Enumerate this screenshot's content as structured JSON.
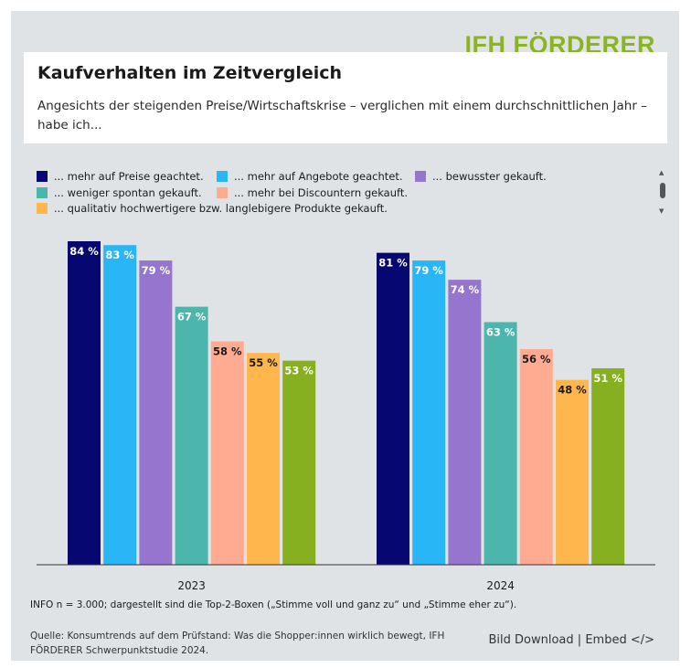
{
  "brand": {
    "name": "IFH FÖRDERER",
    "color": "#8ab423"
  },
  "header": {
    "title": "Kaufverhalten im Zeitvergleich",
    "subtitle": "Angesichts der steigenden Preise/Wirtschaftskrise – verglichen mit einem durchschnittlichen Jahr – habe ich..."
  },
  "legend": {
    "items": [
      {
        "label": "... mehr auf Preise geachtet.",
        "color": "#060770"
      },
      {
        "label": "... mehr auf Angebote geachtet.",
        "color": "#29b6f6"
      },
      {
        "label": "... bewusster gekauft.",
        "color": "#9575cd"
      },
      {
        "label": "... weniger spontan gekauft.",
        "color": "#4db6ac"
      },
      {
        "label": "... mehr bei Discountern gekauft.",
        "color": "#ffab91"
      },
      {
        "label": "... qualitativ hochwertigere bzw. langlebigere Produkte gekauft.",
        "color": "#ffb74d"
      }
    ],
    "scroll": {
      "up_icon": "arrow-up-icon",
      "down_icon": "arrow-down-icon"
    }
  },
  "chart_data": {
    "type": "bar",
    "categories": [
      "2023",
      "2024"
    ],
    "series": [
      {
        "name": "... mehr auf Preise geachtet.",
        "color": "#060770",
        "values": [
          84,
          81
        ]
      },
      {
        "name": "... mehr auf Angebote geachtet.",
        "color": "#29b6f6",
        "values": [
          83,
          79
        ]
      },
      {
        "name": "... bewusster gekauft.",
        "color": "#9575cd",
        "values": [
          79,
          74
        ]
      },
      {
        "name": "... weniger spontan gekauft.",
        "color": "#4db6ac",
        "values": [
          67,
          63
        ]
      },
      {
        "name": "... mehr bei Discountern gekauft.",
        "color": "#ffab91",
        "values": [
          58,
          56
        ]
      },
      {
        "name": "... qualitativ hochwertigere bzw. langlebigere Produkte gekauft.",
        "color": "#ffb74d",
        "values": [
          55,
          48
        ]
      },
      {
        "color": "#86b020",
        "values": [
          53,
          51
        ]
      }
    ],
    "value_suffix": " %",
    "ylim": [
      0,
      84
    ],
    "grid": false,
    "legend_position": "top-left"
  },
  "notes": {
    "info": "INFO n = 3.000; dargestellt sind die Top-2-Boxen („Stimme voll und ganz zu“ und „Stimme eher zu“).",
    "source": "Quelle: Konsumtrends auf dem Prüfstand: Was die Shopper:innen wirklich bewegt, IFH FÖRDERER Schwerpunktstudie 2024."
  },
  "links": {
    "download": "Bild Download",
    "separator": "|",
    "embed": "Embed </>"
  }
}
